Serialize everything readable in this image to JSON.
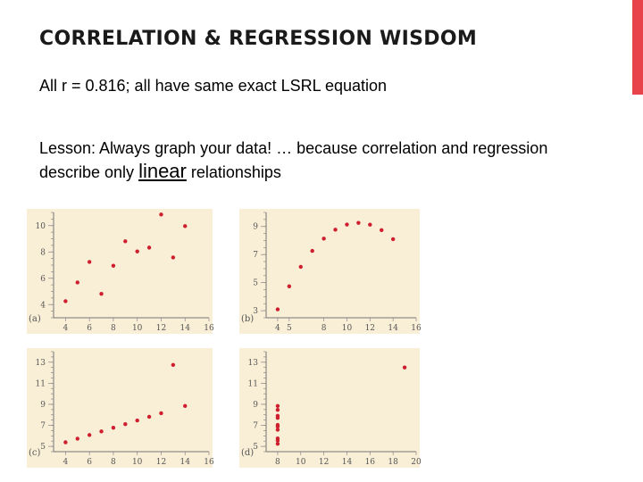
{
  "slide": {
    "title": "CORRELATION & REGRESSION WISDOM",
    "line1": "All r = 0.816; all have same exact LSRL equation",
    "lesson_pre": "Lesson: Always graph your data! … because correlation and regression describe only ",
    "lesson_em": "linear",
    "lesson_post": " relationships",
    "accent_color": "#e8434a"
  },
  "chart_data": [
    {
      "type": "scatter",
      "panel_label": "(a)",
      "x": [
        4,
        5,
        6,
        7,
        8,
        9,
        10,
        11,
        12,
        13,
        14
      ],
      "y": [
        4.26,
        5.68,
        7.24,
        4.82,
        6.95,
        8.81,
        8.04,
        8.33,
        10.84,
        7.58,
        9.96
      ],
      "xticks": [
        4,
        6,
        8,
        10,
        12,
        14,
        16
      ],
      "yticks": [
        4,
        6,
        8,
        10
      ],
      "xlim": [
        3,
        16
      ],
      "ylim": [
        3,
        11
      ]
    },
    {
      "type": "scatter",
      "panel_label": "(b)",
      "x": [
        4,
        5,
        6,
        7,
        8,
        9,
        10,
        11,
        12,
        13,
        14
      ],
      "y": [
        3.1,
        4.74,
        6.13,
        7.26,
        8.14,
        8.77,
        9.14,
        9.26,
        9.13,
        8.74,
        8.1
      ],
      "xticks": [
        4,
        5,
        8,
        10,
        12,
        14,
        16
      ],
      "yticks": [
        3,
        5,
        7,
        9
      ],
      "xlim": [
        3,
        16
      ],
      "ylim": [
        2.5,
        10
      ]
    },
    {
      "type": "scatter",
      "panel_label": "(c)",
      "x": [
        4,
        5,
        6,
        7,
        8,
        9,
        10,
        11,
        12,
        13,
        14
      ],
      "y": [
        5.39,
        5.73,
        6.08,
        6.42,
        6.77,
        7.11,
        7.46,
        7.81,
        8.15,
        12.74,
        8.84
      ],
      "xticks": [
        4,
        6,
        8,
        10,
        12,
        14,
        16
      ],
      "yticks": [
        5,
        7,
        9,
        11,
        13
      ],
      "xlim": [
        3,
        16
      ],
      "ylim": [
        4.5,
        14
      ]
    },
    {
      "type": "scatter",
      "panel_label": "(d)",
      "x": [
        8,
        8,
        8,
        8,
        8,
        8,
        8,
        8,
        8,
        8,
        19
      ],
      "y": [
        5.25,
        5.56,
        5.76,
        6.58,
        6.89,
        7.04,
        7.71,
        7.91,
        8.47,
        8.84,
        12.5
      ],
      "xticks": [
        8,
        10,
        12,
        14,
        16,
        18,
        20
      ],
      "yticks": [
        5,
        7,
        9,
        11,
        13
      ],
      "xlim": [
        7,
        20
      ],
      "ylim": [
        4.5,
        14
      ]
    }
  ]
}
